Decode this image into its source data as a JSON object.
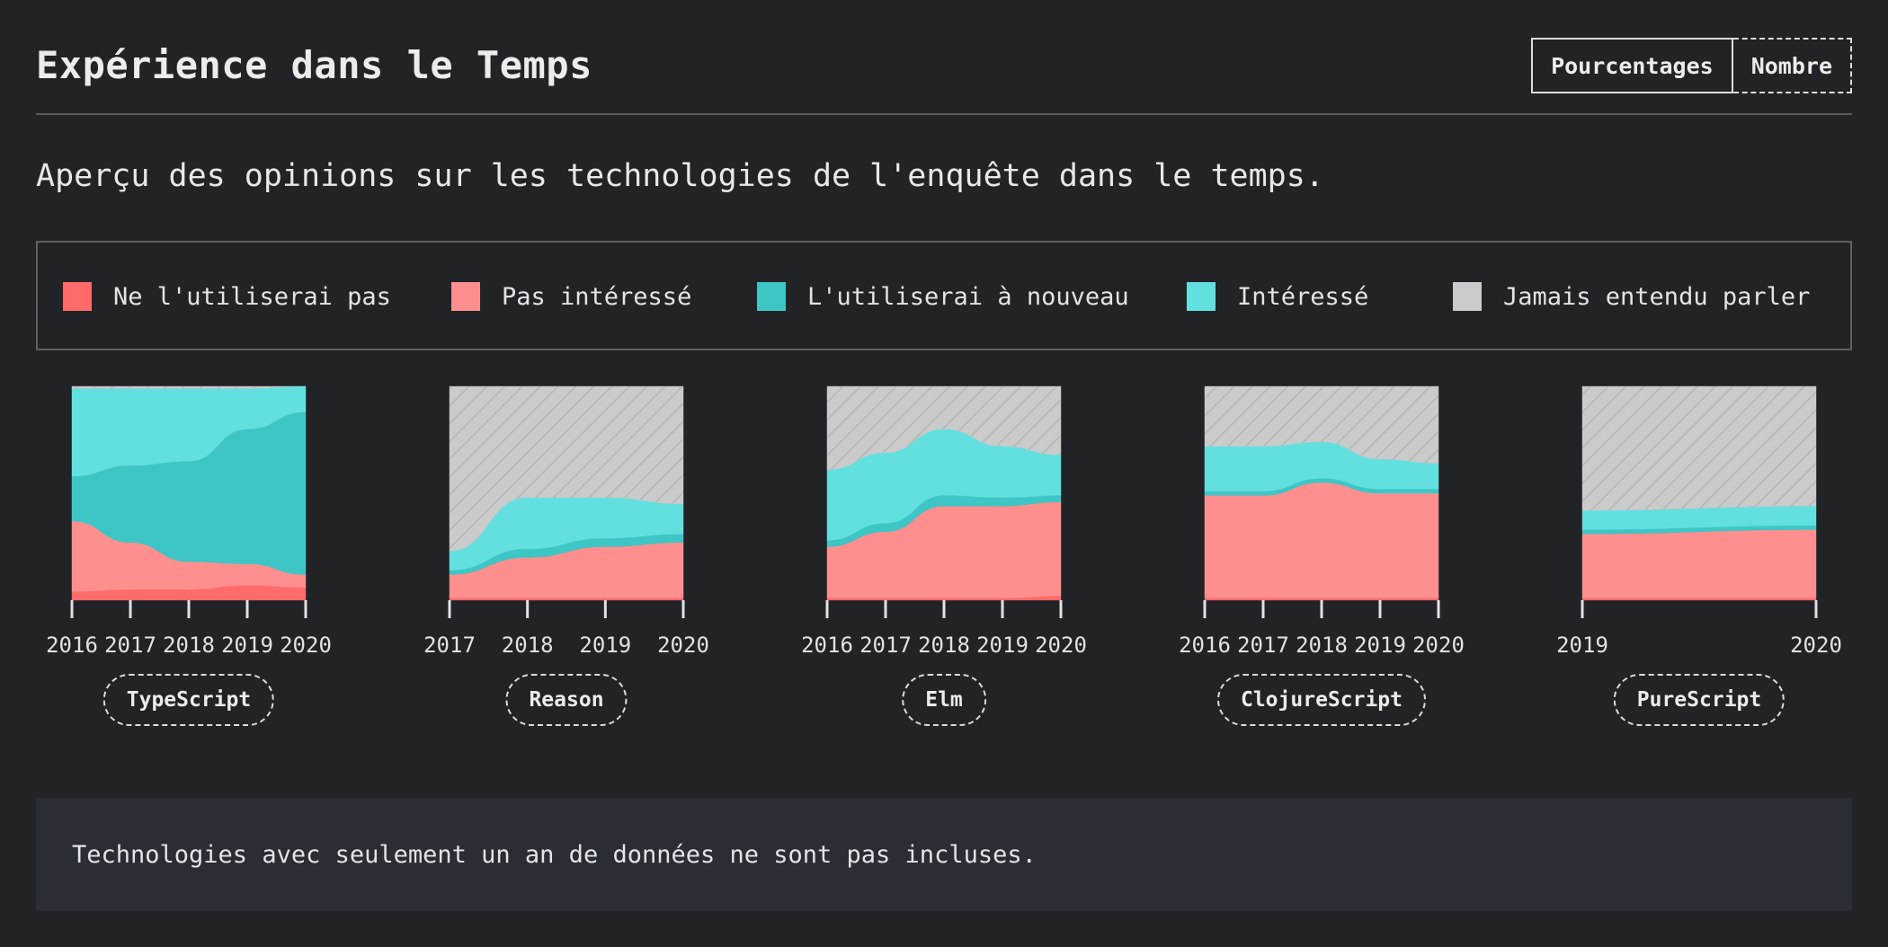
{
  "header": {
    "title": "Expérience dans le Temps",
    "toggle": {
      "percentages_label": "Pourcentages",
      "count_label": "Nombre",
      "selected": "Pourcentages"
    }
  },
  "subtitle": "Aperçu des opinions sur les technologies de l'enquête dans le temps.",
  "legend": [
    {
      "label": "Ne l'utiliserai pas",
      "color": "#ff6b6b"
    },
    {
      "label": "Pas intéressé",
      "color": "#ff8f8f"
    },
    {
      "label": "L'utiliserai à nouveau",
      "color": "#3ec6c6"
    },
    {
      "label": "Intéressé",
      "color": "#62e0e0"
    },
    {
      "label": "Jamais entendu parler",
      "color": "#cbcbcb"
    }
  ],
  "chart_data": [
    {
      "type": "area",
      "stacked": true,
      "ylim": [
        0,
        100
      ],
      "name": "TypeScript",
      "x": [
        "2016",
        "2017",
        "2018",
        "2019",
        "2020"
      ],
      "series": [
        {
          "name": "Ne l'utiliserai pas",
          "values": [
            4,
            5,
            5,
            7,
            6
          ]
        },
        {
          "name": "Pas intéressé",
          "values": [
            33,
            22,
            13,
            10,
            6
          ]
        },
        {
          "name": "L'utiliserai à nouveau",
          "values": [
            21,
            36,
            47,
            63,
            76
          ]
        },
        {
          "name": "Intéressé",
          "values": [
            41,
            36,
            34,
            19,
            12
          ]
        },
        {
          "name": "Jamais entendu parler",
          "values": [
            1,
            1,
            1,
            1,
            0
          ]
        }
      ]
    },
    {
      "type": "area",
      "stacked": true,
      "ylim": [
        0,
        100
      ],
      "name": "Reason",
      "x": [
        "2017",
        "2018",
        "2019",
        "2020"
      ],
      "series": [
        {
          "name": "Ne l'utiliserai pas",
          "values": [
            1,
            1,
            1,
            1
          ]
        },
        {
          "name": "Pas intéressé",
          "values": [
            11,
            19,
            24,
            26
          ]
        },
        {
          "name": "L'utiliserai à nouveau",
          "values": [
            2,
            4,
            4,
            4
          ]
        },
        {
          "name": "Intéressé",
          "values": [
            9,
            24,
            19,
            14
          ]
        },
        {
          "name": "Jamais entendu parler",
          "values": [
            77,
            52,
            52,
            55
          ]
        }
      ]
    },
    {
      "type": "area",
      "stacked": true,
      "ylim": [
        0,
        100
      ],
      "name": "Elm",
      "x": [
        "2016",
        "2017",
        "2018",
        "2019",
        "2020"
      ],
      "series": [
        {
          "name": "Ne l'utiliserai pas",
          "values": [
            1,
            1,
            1,
            1,
            2
          ]
        },
        {
          "name": "Pas intéressé",
          "values": [
            24,
            31,
            43,
            43,
            44
          ]
        },
        {
          "name": "L'utiliserai à nouveau",
          "values": [
            3,
            4,
            5,
            4,
            3
          ]
        },
        {
          "name": "Intéressé",
          "values": [
            33,
            33,
            31,
            24,
            19
          ]
        },
        {
          "name": "Jamais entendu parler",
          "values": [
            39,
            31,
            20,
            28,
            32
          ]
        }
      ]
    },
    {
      "type": "area",
      "stacked": true,
      "ylim": [
        0,
        100
      ],
      "name": "ClojureScript",
      "x": [
        "2016",
        "2017",
        "2018",
        "2019",
        "2020"
      ],
      "series": [
        {
          "name": "Ne l'utiliserai pas",
          "values": [
            1,
            1,
            1,
            1,
            1
          ]
        },
        {
          "name": "Pas intéressé",
          "values": [
            48,
            48,
            54,
            49,
            49
          ]
        },
        {
          "name": "L'utiliserai à nouveau",
          "values": [
            2,
            2,
            2,
            2,
            2
          ]
        },
        {
          "name": "Intéressé",
          "values": [
            21,
            21,
            17,
            14,
            12
          ]
        },
        {
          "name": "Jamais entendu parler",
          "values": [
            28,
            28,
            26,
            34,
            36
          ]
        }
      ]
    },
    {
      "type": "area",
      "stacked": true,
      "ylim": [
        0,
        100
      ],
      "name": "PureScript",
      "x": [
        "2019",
        "2020"
      ],
      "series": [
        {
          "name": "Ne l'utiliserai pas",
          "values": [
            1,
            1
          ]
        },
        {
          "name": "Pas intéressé",
          "values": [
            30,
            32
          ]
        },
        {
          "name": "L'utiliserai à nouveau",
          "values": [
            2,
            2
          ]
        },
        {
          "name": "Intéressé",
          "values": [
            9,
            9
          ]
        },
        {
          "name": "Jamais entendu parler",
          "values": [
            58,
            56
          ]
        }
      ]
    }
  ],
  "footnote": "Technologies avec seulement un an de données ne sont pas incluses."
}
